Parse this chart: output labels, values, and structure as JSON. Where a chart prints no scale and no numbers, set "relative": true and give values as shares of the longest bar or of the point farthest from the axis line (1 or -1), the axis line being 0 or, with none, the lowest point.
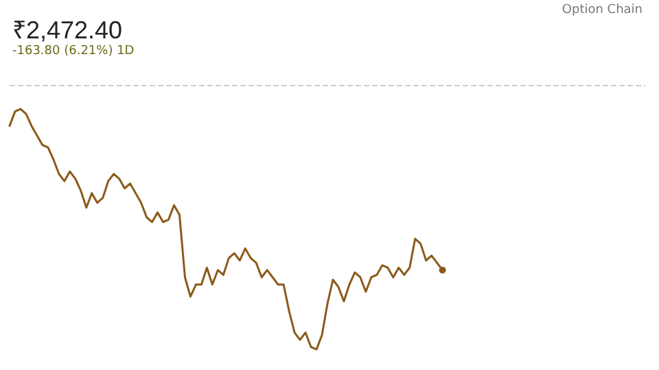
{
  "chart_data": {
    "type": "line",
    "title": "₹2,472.40",
    "subtitle": "-163.80 (6.21%) 1D",
    "annotations": [
      "Option Chain"
    ],
    "relative": true,
    "grid": false,
    "marker": "none",
    "line_style": "solid",
    "ref_lines": [
      {
        "axis": "y",
        "value": 1.1,
        "label": null,
        "color": "#cccccc",
        "line_style": "dashed"
      }
    ],
    "categories": [
      null,
      null,
      null,
      null,
      null,
      null,
      null,
      null,
      null,
      null,
      null,
      null,
      null,
      null,
      null,
      null,
      null,
      null,
      null,
      null,
      null,
      null,
      null,
      null,
      null,
      null,
      null,
      null,
      null,
      null,
      null,
      null,
      null,
      null,
      null,
      null,
      null,
      null,
      null,
      null,
      null,
      null,
      null,
      null,
      null,
      null,
      null,
      null,
      null,
      null,
      null,
      null,
      null,
      null,
      null,
      null,
      null,
      null,
      null,
      null,
      null,
      null,
      null,
      null,
      null,
      null,
      null,
      null,
      null,
      null,
      null,
      null,
      null,
      null,
      null,
      null,
      null,
      null,
      null,
      null,
      null,
      null,
      null,
      null,
      null,
      null,
      null,
      null,
      null,
      null,
      null,
      null,
      null,
      null,
      null,
      null,
      null,
      null,
      null,
      null,
      null,
      null,
      null,
      null,
      null,
      null,
      null,
      null,
      null,
      null,
      null,
      null,
      null,
      null,
      null,
      null,
      null
    ],
    "series": [
      {
        "color": "#8b5a1a",
        "values": [
          0.93,
          0.99,
          1.0,
          0.98,
          0.93,
          0.89,
          0.85,
          0.84,
          0.79,
          0.73,
          0.7,
          0.74,
          0.71,
          0.66,
          0.59,
          0.65,
          0.61,
          0.63,
          0.7,
          0.73,
          0.71,
          0.67,
          0.69,
          0.65,
          0.61,
          0.55,
          0.53,
          0.57,
          0.53,
          0.54,
          0.6,
          0.56,
          0.3,
          0.22,
          0.27,
          0.27,
          0.34,
          0.27,
          0.33,
          0.31,
          0.38,
          0.4,
          0.37,
          0.42,
          0.38,
          0.36,
          0.3,
          0.33,
          0.3,
          0.27,
          0.27,
          0.16,
          0.07,
          0.04,
          0.07,
          0.01,
          0,
          0.06,
          0.19,
          0.29,
          0.26,
          0.2,
          0.27,
          0.32,
          0.3,
          0.24,
          0.3,
          0.31,
          0.35,
          0.34,
          0.3,
          0.34,
          0.31,
          0.34,
          0.46,
          0.44,
          0.37,
          0.39,
          0.36,
          0.33,
          null,
          null,
          null,
          null,
          null,
          null,
          null,
          null,
          null,
          null,
          null,
          null,
          null,
          null,
          null,
          null,
          null,
          null,
          null,
          null,
          null,
          null,
          null,
          null,
          null,
          null,
          null,
          null,
          null,
          null,
          null,
          null,
          null,
          null,
          null,
          null,
          null
        ]
      }
    ]
  }
}
